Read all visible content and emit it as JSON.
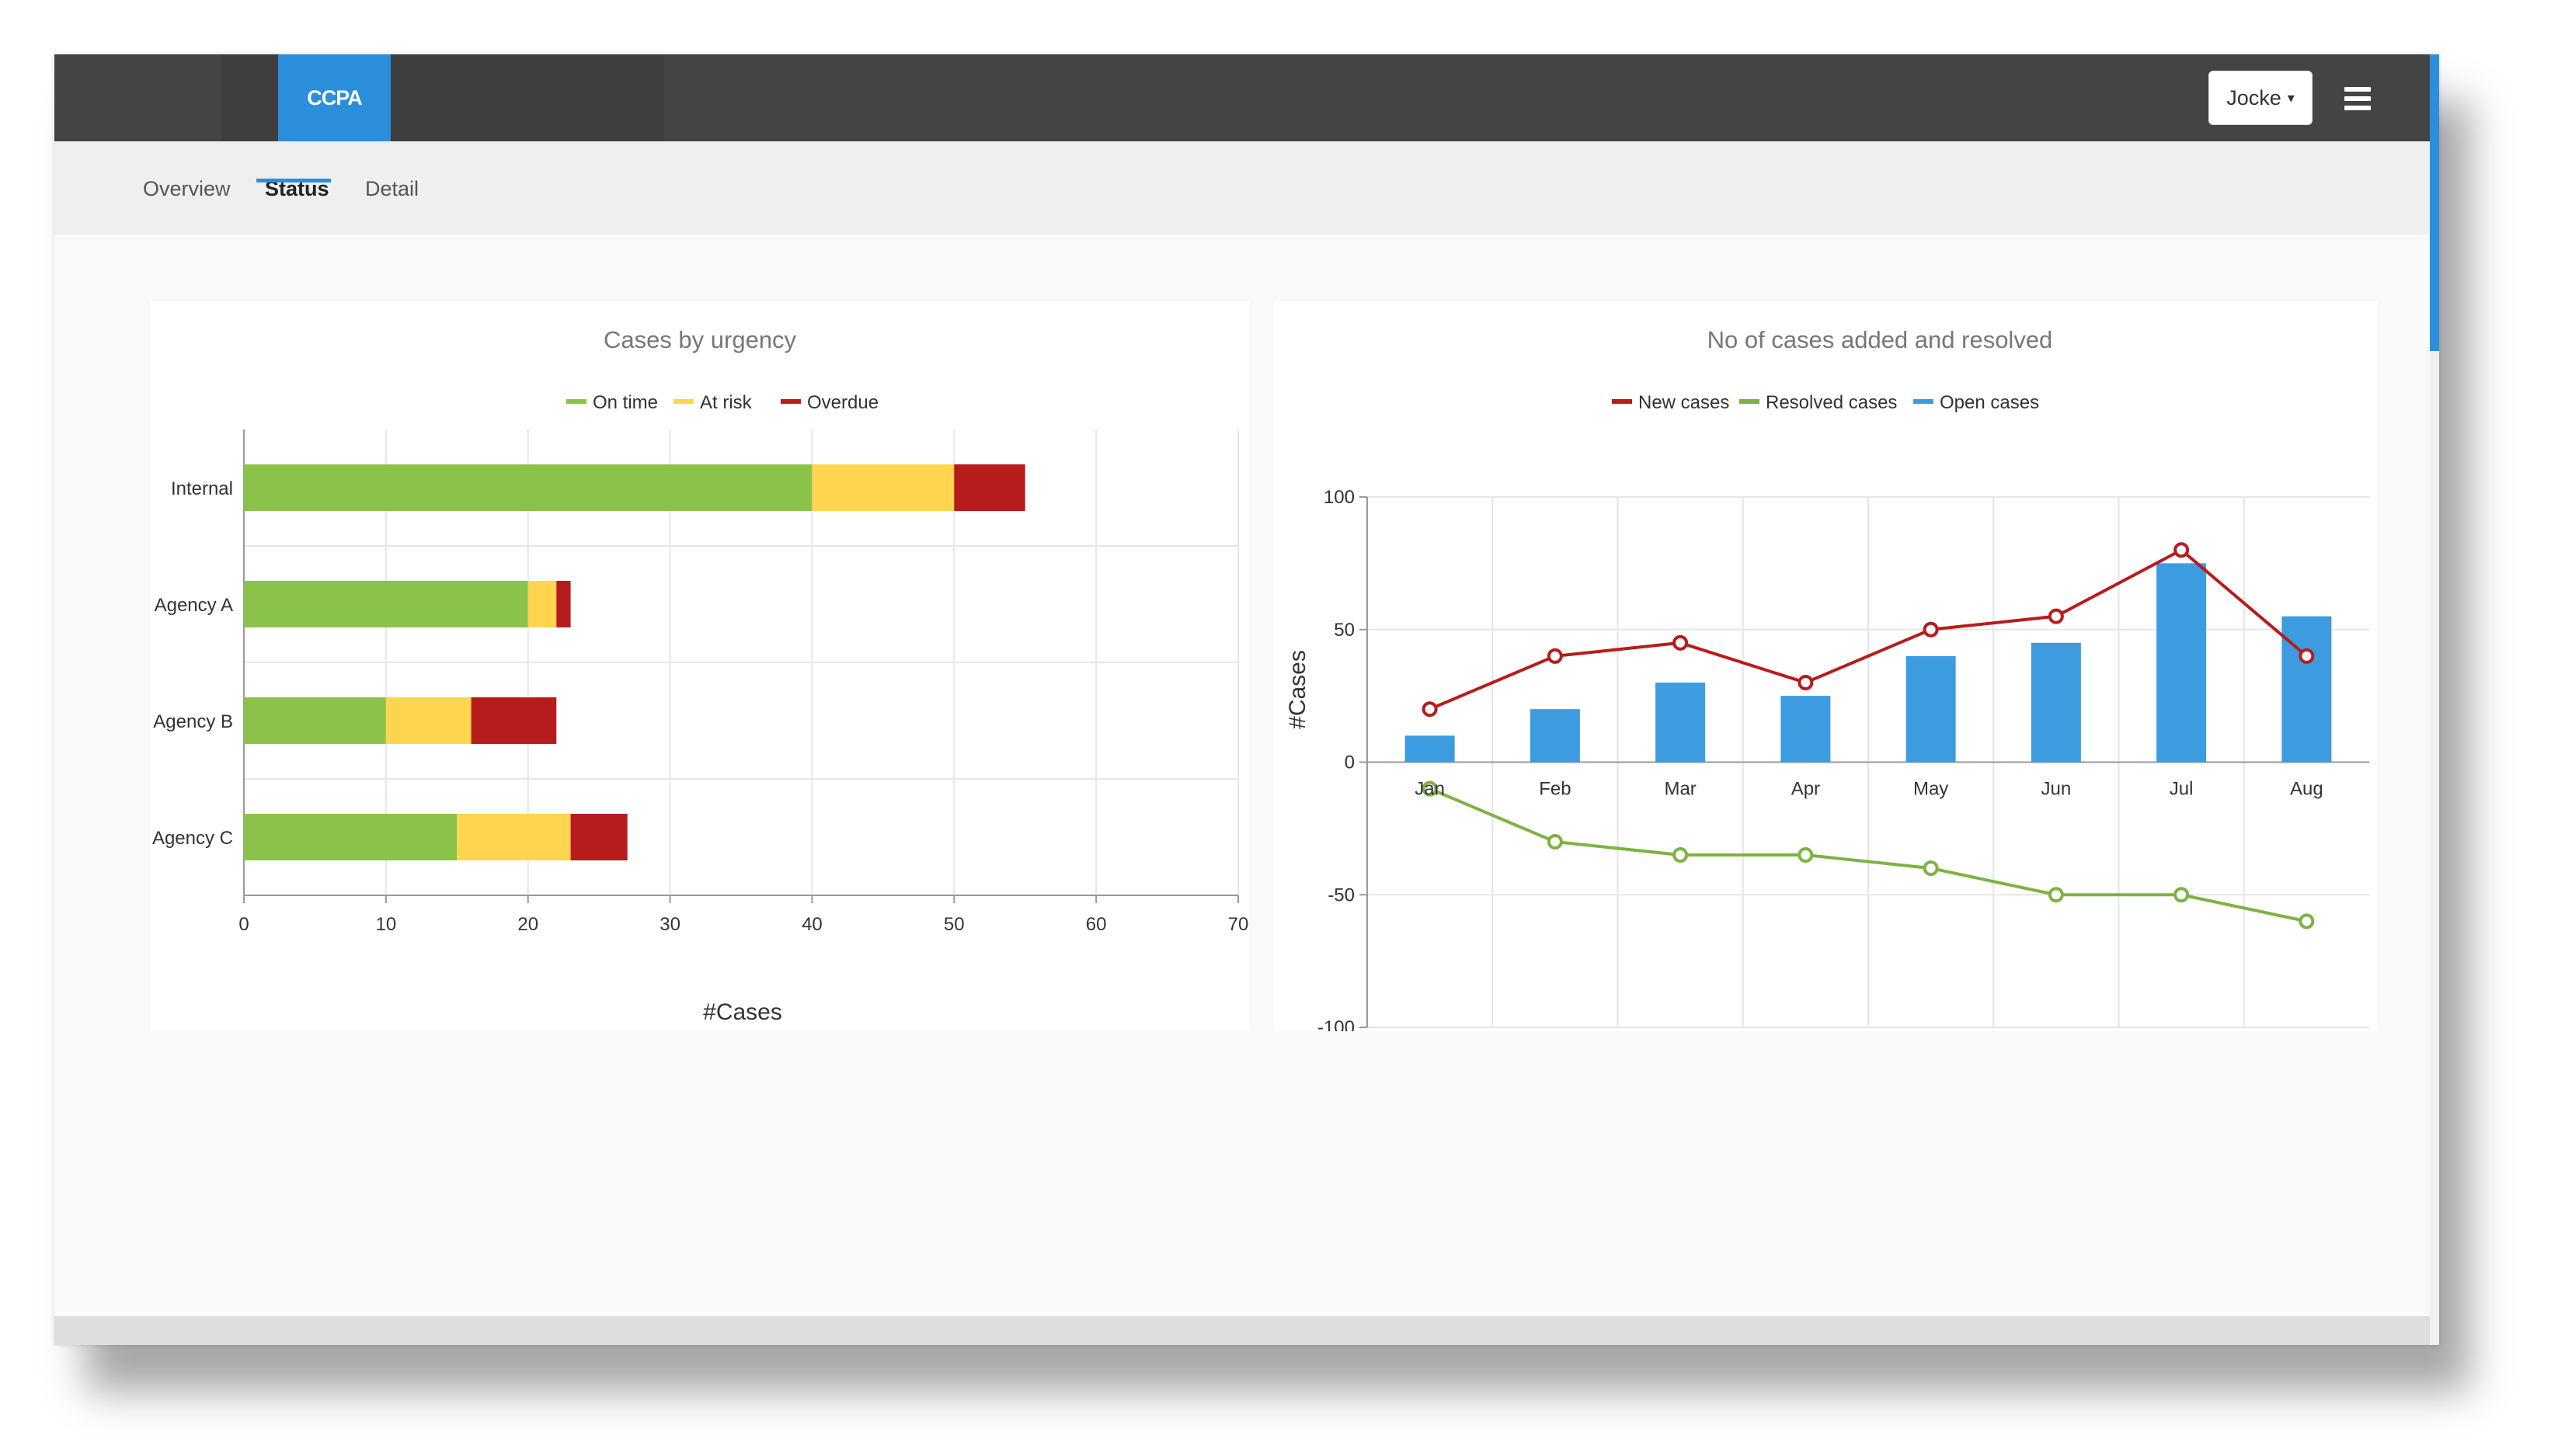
{
  "header": {
    "brand": "CCPA",
    "user_menu": {
      "label": "Jocke",
      "caret": "▾"
    },
    "menu_icon": "hamburger-menu-icon"
  },
  "tabs": [
    {
      "label": "Overview",
      "active": false
    },
    {
      "label": "Status",
      "active": true
    },
    {
      "label": "Detail",
      "active": false
    }
  ],
  "colors": {
    "accent": "#2b8fdc",
    "on_time": "#8bc34a",
    "at_risk": "#ffd54f",
    "overdue": "#b71c1c",
    "new_cases": "#b71c1c",
    "resolved_cases": "#7cb342",
    "open_cases": "#3d9be0"
  },
  "chart_data": [
    {
      "type": "bar",
      "orientation": "horizontal",
      "stacked": true,
      "title": "Cases by urgency",
      "legend": {
        "position": "top"
      },
      "categories": [
        "Internal",
        "Agency A",
        "Agency B",
        "Agency C"
      ],
      "series": [
        {
          "name": "On time",
          "values": [
            40,
            20,
            10,
            15
          ]
        },
        {
          "name": "At risk",
          "values": [
            10,
            2,
            6,
            8
          ]
        },
        {
          "name": "Overdue",
          "values": [
            5,
            1,
            6,
            4
          ]
        }
      ],
      "xlabel": "#Cases",
      "xlim": [
        0,
        70
      ],
      "xticks": [
        0,
        10,
        20,
        30,
        40,
        50,
        60,
        70
      ],
      "grid": true
    },
    {
      "type": "bar+line",
      "title": "No of cases added and resolved",
      "legend": {
        "position": "top"
      },
      "categories": [
        "Jan",
        "Feb",
        "Mar",
        "Apr",
        "May",
        "Jun",
        "Jul",
        "Aug"
      ],
      "series": [
        {
          "name": "New cases",
          "type": "line",
          "values": [
            20,
            40,
            45,
            30,
            50,
            55,
            80,
            40
          ]
        },
        {
          "name": "Resolved cases",
          "type": "line",
          "values": [
            -10,
            -30,
            -35,
            -35,
            -40,
            -50,
            -50,
            -60
          ]
        },
        {
          "name": "Open cases",
          "type": "bar",
          "values": [
            10,
            20,
            30,
            25,
            40,
            45,
            75,
            55
          ]
        }
      ],
      "ylabel": "#Cases",
      "ylim": [
        -100,
        100
      ],
      "yticks": [
        100,
        50,
        0,
        -50,
        -100
      ],
      "grid": true
    }
  ]
}
